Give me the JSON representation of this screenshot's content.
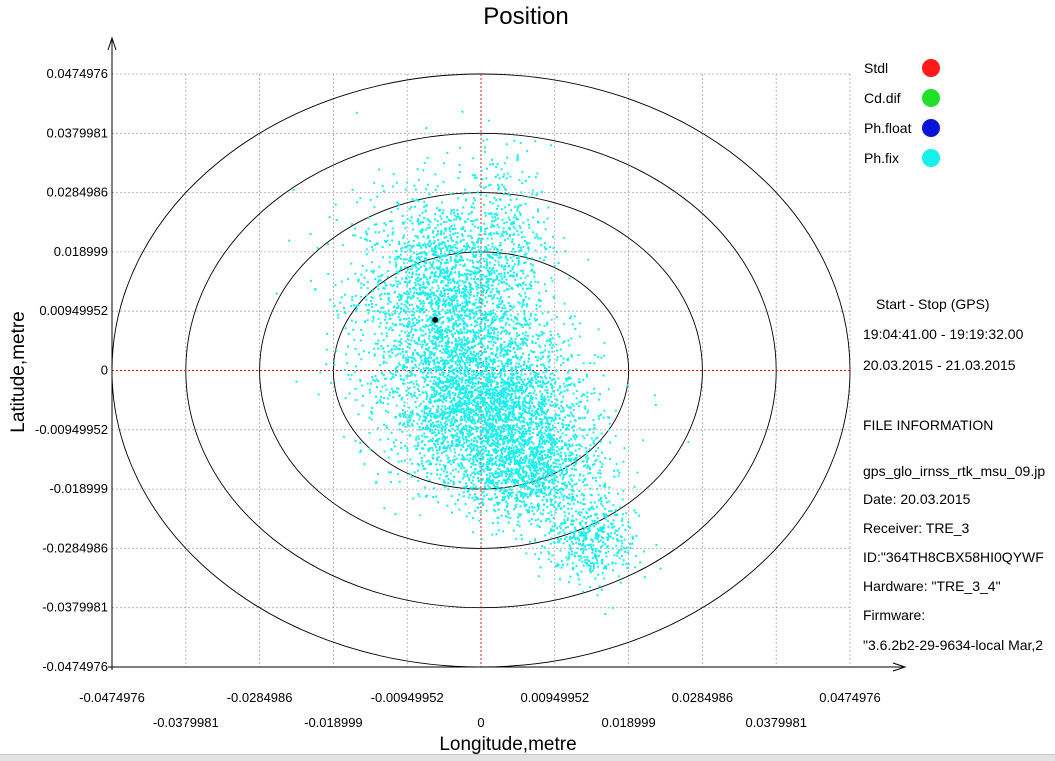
{
  "chart_data": {
    "type": "scatter",
    "title": "Position",
    "xlabel": "Longitude,metre",
    "ylabel": "Latitude,metre",
    "xlim": [
      -0.0474976,
      0.0474976
    ],
    "ylim": [
      -0.0474976,
      0.0474976
    ],
    "grid": true,
    "x_ticks_row1": [
      "-0.0474976",
      "-0.0284986",
      "-0.00949952",
      "0.00949952",
      "0.0284986",
      "0.0474976"
    ],
    "x_ticks_row2": [
      "-0.0379981",
      "-0.018999",
      "0",
      "0.018999",
      "0.0379981"
    ],
    "y_ticks": [
      "0.0474976",
      "0.0379981",
      "0.0284986",
      "0.018999",
      "0.00949952",
      "0",
      "-0.00949952",
      "-0.018999",
      "-0.0284986",
      "-0.0379981",
      "-0.0474976"
    ],
    "circles_radius": [
      0.018999,
      0.0284986,
      0.0379981,
      0.0474976
    ],
    "mean_point": {
      "x": -0.0059,
      "y": 0.0081
    },
    "legend": [
      {
        "name": "Stdl",
        "color": "#ff1a1a"
      },
      {
        "name": "Cd.dif",
        "color": "#22e02a"
      },
      {
        "name": "Ph.float",
        "color": "#0a14d8"
      },
      {
        "name": "Ph.fix",
        "color": "#16f0ec"
      }
    ],
    "series": [
      {
        "name": "Ph.fix",
        "color": "#16f0ec",
        "clusters": [
          {
            "cx": -0.0045,
            "cy": 0.011,
            "sx": 0.0058,
            "sy": 0.0085,
            "n": 2400
          },
          {
            "cx": 0.001,
            "cy": -0.006,
            "sx": 0.006,
            "sy": 0.006,
            "n": 2800
          },
          {
            "cx": 0.006,
            "cy": -0.016,
            "sx": 0.0045,
            "sy": 0.004,
            "n": 1100
          },
          {
            "cx": 0.014,
            "cy": -0.027,
            "sx": 0.003,
            "sy": 0.0035,
            "n": 450
          },
          {
            "cx": 0.003,
            "cy": 0.022,
            "sx": 0.003,
            "sy": 0.007,
            "n": 260
          }
        ],
        "outliers": [
          [
            0.001,
            0.04
          ],
          [
            0.0008,
            0.037
          ],
          [
            0.0005,
            0.035
          ],
          [
            0.0012,
            0.033
          ],
          [
            0.0019,
            0.031
          ],
          [
            0.0022,
            0.029
          ],
          [
            -0.001,
            0.034
          ],
          [
            0.0001,
            0.032
          ],
          [
            -0.0078,
            0.02
          ],
          [
            -0.012,
            0.015
          ],
          [
            -0.013,
            0.012
          ],
          [
            -0.0115,
            -0.01
          ],
          [
            -0.014,
            -0.006
          ],
          [
            -0.0135,
            -0.018
          ],
          [
            -0.015,
            -0.015
          ],
          [
            -0.011,
            -0.023
          ],
          [
            0.017,
            -0.032
          ],
          [
            0.018,
            -0.034
          ],
          [
            0.019,
            -0.031
          ],
          [
            0.015,
            -0.036
          ],
          [
            0.016,
            -0.039
          ],
          [
            0.017,
            -0.038
          ],
          [
            0.021,
            -0.029
          ],
          [
            0.02,
            -0.0265
          ]
        ]
      }
    ]
  },
  "info": {
    "period_heading": "Start  -  Stop  (GPS)",
    "time_range": "19:04:41.00 - 19:19:32.00",
    "date_range": "20.03.2015 - 21.03.2015",
    "file_heading": "FILE INFORMATION",
    "file_name": "gps_glo_irnss_rtk_msu_09.jp",
    "date": "Date: 20.03.2015",
    "receiver": "Receiver: TRE_3",
    "id": "ID:\"364TH8CBX58HI0QYWF",
    "hardware": "Hardware: \"TRE_3_4\"",
    "firmware": "Firmware:",
    "firmware_value": "\"3.6.2b2-29-9634-local Mar,2"
  }
}
